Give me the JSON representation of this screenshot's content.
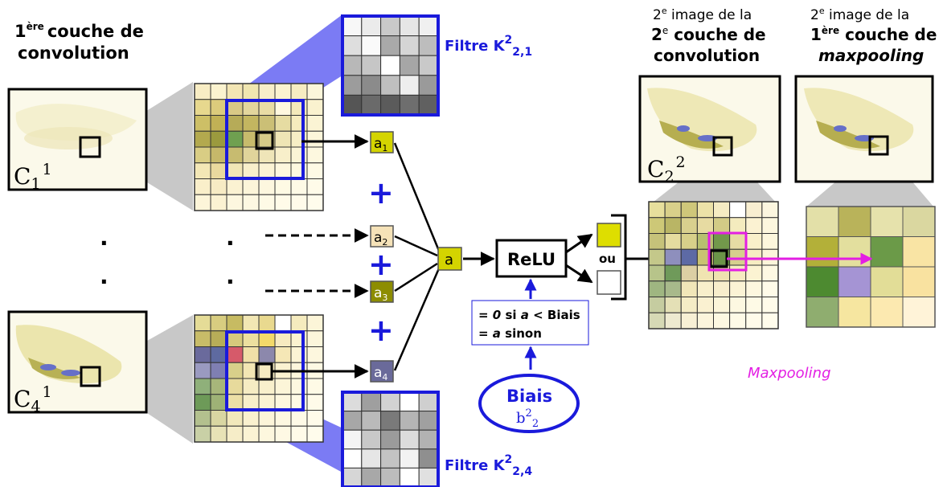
{
  "labels": {
    "layer1_title_num": "1",
    "layer1_title_sup": "ère",
    "layer1_title_rest": "couche de",
    "layer1_title_line2": "convolution",
    "c1_main": "C",
    "c1_sub": "1",
    "c1_sup": "1",
    "c4_main": "C",
    "c4_sub": "4",
    "c4_sup": "1",
    "filter1_prefix": "Filtre K",
    "filter1_sup": "2",
    "filter1_sub": "2,1",
    "filter4_prefix": "Filtre K",
    "filter4_sup": "2",
    "filter4_sub": "2,4",
    "a1": "a",
    "a1_sub": "1",
    "a2": "a",
    "a2_sub": "2",
    "a3": "a",
    "a3_sub": "3",
    "a4": "a",
    "a4_sub": "4",
    "plus": "+",
    "a_sum": "a",
    "relu": "ReLU",
    "relu_rule_line1_a": "= ",
    "relu_rule_line1_b": "0",
    "relu_rule_line1_c": " si ",
    "relu_rule_line1_d": "a",
    "relu_rule_line1_e": " < Biais",
    "relu_rule_line2_a": "= ",
    "relu_rule_line2_b": "a",
    "relu_rule_line2_c": " sinon",
    "bias_title": "Biais",
    "bias_symbol": "b",
    "bias_sup": "2",
    "bias_sub": "2",
    "ou": "ou",
    "conv2_head_1a": "2",
    "conv2_head_1sup": "e",
    "conv2_head_1b": " image de la",
    "conv2_head_2a": "2",
    "conv2_head_2sup": "e",
    "conv2_head_2b": " couche de",
    "conv2_head_3": "convolution",
    "pool_head_1a": "2",
    "pool_head_1sup": "e",
    "pool_head_1b": " image de la",
    "pool_head_2a": "1",
    "pool_head_2sup": "ère",
    "pool_head_2b": " couche de",
    "pool_head_3": "maxpooling",
    "c2_main": "C",
    "c2_sub": "2",
    "c2_sup": "2",
    "maxpooling": "Maxpooling",
    "dot": "."
  },
  "colors": {
    "filter_blue": "#1a1adb",
    "shade_blue": "#7b7bf4",
    "magenta": "#e31ee3",
    "a1_fill": "#d4d400",
    "a2_fill": "#f5e2b8",
    "a3_fill": "#8d8d00",
    "a4_fill": "#6a6a9a",
    "a_sum_fill": "#d4d400",
    "out_yellow": "#dede00"
  },
  "grids": {
    "input1": [
      [
        "#f8edc4",
        "#fbf3cf",
        "#f3e6b4",
        "#f0e6b0",
        "#f8eec9",
        "#fbf3d0",
        "#f6ecc2",
        "#fcf6da"
      ],
      [
        "#e7d88e",
        "#dccb7c",
        "#d9c986",
        "#e3d69d",
        "#e9dca5",
        "#fff8df",
        "#f4e9bb",
        "#faf2cf"
      ],
      [
        "#cdbf66",
        "#c1b155",
        "#b6ab58",
        "#c3b660",
        "#cbbf76",
        "#e6dca2",
        "#f6ebbd",
        "#fbf4d4"
      ],
      [
        "#b3a94e",
        "#9b9a3e",
        "#6fa050",
        "#c7bb6c",
        "#d6cb89",
        "#efe5b5",
        "#f7eec6",
        "#fcf6da"
      ],
      [
        "#d9cd84",
        "#c6b86a",
        "#c7bb70",
        "#e0d49b",
        "#efe5b8",
        "#f8efca",
        "#fbf4d6",
        "#fdf8df"
      ],
      [
        "#f3e7b6",
        "#ead99e",
        "#f1e6b6",
        "#f8efcb",
        "#fbf3d4",
        "#fdf7de",
        "#fdf8e0",
        "#fefae5"
      ],
      [
        "#faefca",
        "#f7ebc4",
        "#fbf2d2",
        "#fcf5d9",
        "#fdf7df",
        "#fefae4",
        "#fefae6",
        "#fffbe9"
      ],
      [
        "#fdf5d9",
        "#fbf2d2",
        "#fdf7df",
        "#fdf8e2",
        "#fefae6",
        "#fffbe9",
        "#fffbea",
        "#fffcec"
      ]
    ],
    "filter1": [
      [
        "#f7f7f7",
        "#ebebeb",
        "#c9c9c9",
        "#e6e6e6",
        "#f0f0f0"
      ],
      [
        "#dedede",
        "#fafafa",
        "#a9a9a9",
        "#d5d5d5",
        "#bdbdbd"
      ],
      [
        "#b8b8b8",
        "#c6c6c6",
        "#ffffff",
        "#a6a6a6",
        "#c9c9c9"
      ],
      [
        "#9c9c9c",
        "#8b8b8b",
        "#bfbfbf",
        "#eeeeee",
        "#9a9a9a"
      ],
      [
        "#555555",
        "#6a6a6a",
        "#5b5b5b",
        "#6e6e6e",
        "#606060"
      ]
    ],
    "input4": [
      [
        "#e5dc97",
        "#d8cd80",
        "#c7bb62",
        "#f2e7b4",
        "#e9d98f",
        "#ffffff",
        "#f5ebbe",
        "#fcf5d8"
      ],
      [
        "#c8bc68",
        "#b7ad58",
        "#d6c97c",
        "#ecdf9f",
        "#f3d96a",
        "#f7eac0",
        "#fbf2d0",
        "#fcf6db"
      ],
      [
        "#6a6a9c",
        "#5e6aa0",
        "#d65a6a",
        "#f0e0a8",
        "#8c88ac",
        "#f5e7b6",
        "#fcf4d5",
        "#fdf7de"
      ],
      [
        "#9a9ac0",
        "#7f7fb2",
        "#d8cf8a",
        "#f2e6b4",
        "#f6ebc0",
        "#fbf2d1",
        "#fdf6dc",
        "#fef9e3"
      ],
      [
        "#8fb07a",
        "#a7b67a",
        "#e7da9c",
        "#f6ecc3",
        "#f9f0cc",
        "#fcf5d8",
        "#fdf8e0",
        "#fefae6"
      ],
      [
        "#6d9a58",
        "#9eb276",
        "#ecdfa6",
        "#f8efca",
        "#fbf3d3",
        "#fdf7de",
        "#fefae5",
        "#fffbe9"
      ],
      [
        "#b3c08e",
        "#d9d6a2",
        "#f2e8bb",
        "#faf1cf",
        "#fcf5d9",
        "#fdf8e1",
        "#fefae7",
        "#fffbea"
      ],
      [
        "#c9d0a6",
        "#e8e2b6",
        "#f6edc8",
        "#fbf3d4",
        "#fdf7de",
        "#fef9e4",
        "#fffbe9",
        "#fffcec"
      ]
    ],
    "filter4": [
      [
        "#dcdcdc",
        "#9f9f9f",
        "#d2d2d2",
        "#ffffff",
        "#cfcfcf"
      ],
      [
        "#a7a7a7",
        "#bababa",
        "#7a7a7a",
        "#b5b5b5",
        "#a0a0a0"
      ],
      [
        "#f4f4f4",
        "#c8c8c8",
        "#9b9b9b",
        "#dcdcdc",
        "#b2b2b2"
      ],
      [
        "#ffffff",
        "#e6e6e6",
        "#c3c3c3",
        "#f2f2f2",
        "#8f8f8f"
      ],
      [
        "#d6d6d6",
        "#a8a8a8",
        "#bcbcbc",
        "#ffffff",
        "#e0e0e0"
      ]
    ],
    "conv2": [
      [
        "#e7df9c",
        "#d9d08a",
        "#cfc77a",
        "#ece2a8",
        "#f5ecc3",
        "#ffffff",
        "#f8eed0",
        "#fcf6df"
      ],
      [
        "#cdc877",
        "#b9b565",
        "#d9d08e",
        "#e7dba2",
        "#d2cb86",
        "#f4ebbe",
        "#fbf2d2",
        "#fdf7de"
      ],
      [
        "#c6c27a",
        "#e5dc9f",
        "#d8d08a",
        "#b7c070",
        "#72984b",
        "#e6dca4",
        "#f9f0ca",
        "#fdf7dd"
      ],
      [
        "#c4c88a",
        "#8e8fbd",
        "#5d6aa5",
        "#c9c372",
        "#6a9448",
        "#d6cf8d",
        "#f6ecc2",
        "#fcf5da"
      ],
      [
        "#b7c48a",
        "#6f9a5a",
        "#dccfa4",
        "#f0e4b1",
        "#eee1b0",
        "#f6ebc1",
        "#fbf3d2",
        "#fef9e3"
      ],
      [
        "#9fb681",
        "#a8b98b",
        "#f1e6b9",
        "#f8efcb",
        "#f8eecc",
        "#fbf3d5",
        "#fdf7df",
        "#fffbe9"
      ],
      [
        "#c5cca0",
        "#e4e0b6",
        "#f5ecc6",
        "#faf1d1",
        "#fcf5da",
        "#fdf8e1",
        "#fefae6",
        "#fffbea"
      ],
      [
        "#d6d9b5",
        "#eeead0",
        "#f8f0d5",
        "#fcf5dc",
        "#fdf8e2",
        "#fefae7",
        "#fffbea",
        "#fffcec"
      ]
    ],
    "pool": [
      [
        "#e3e0a8",
        "#b9b35a",
        "#e6e2ac",
        "#dad7a0"
      ],
      [
        "#b3b039",
        "#e3df9e",
        "#6b9a48",
        "#f9e4a4"
      ],
      [
        "#4d8a30",
        "#a594d4",
        "#e2dd97",
        "#f9e2a0"
      ],
      [
        "#8fad6f",
        "#f6e6a0",
        "#fce9b0",
        "#fff3d8"
      ]
    ]
  }
}
